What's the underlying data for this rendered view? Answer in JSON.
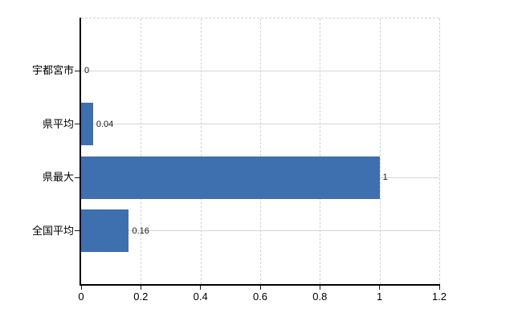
{
  "chart_data": {
    "type": "bar",
    "orientation": "horizontal",
    "title": "",
    "xlabel": "",
    "ylabel": "",
    "categories": [
      "宇都宮市",
      "県平均",
      "県最大",
      "全国平均"
    ],
    "values": [
      0,
      0.04,
      1,
      0.16
    ],
    "value_labels": [
      "0",
      "0.04",
      "1",
      "0.16"
    ],
    "x_ticks": [
      0,
      0.2,
      0.4,
      0.6,
      0.8,
      1,
      1.2
    ],
    "x_tick_labels": [
      "0",
      "0.2",
      "0.4",
      "0.6",
      "0.8",
      "1",
      "1.2"
    ],
    "xlim": [
      0,
      1.2
    ],
    "grid": true,
    "legend": false,
    "bar_color": "#3e6fae",
    "axis_color": "#000000",
    "hgrid_color": "#d3dad3",
    "vgrid_color": "#d6d0d7",
    "label_color": "#1a1a1a"
  }
}
